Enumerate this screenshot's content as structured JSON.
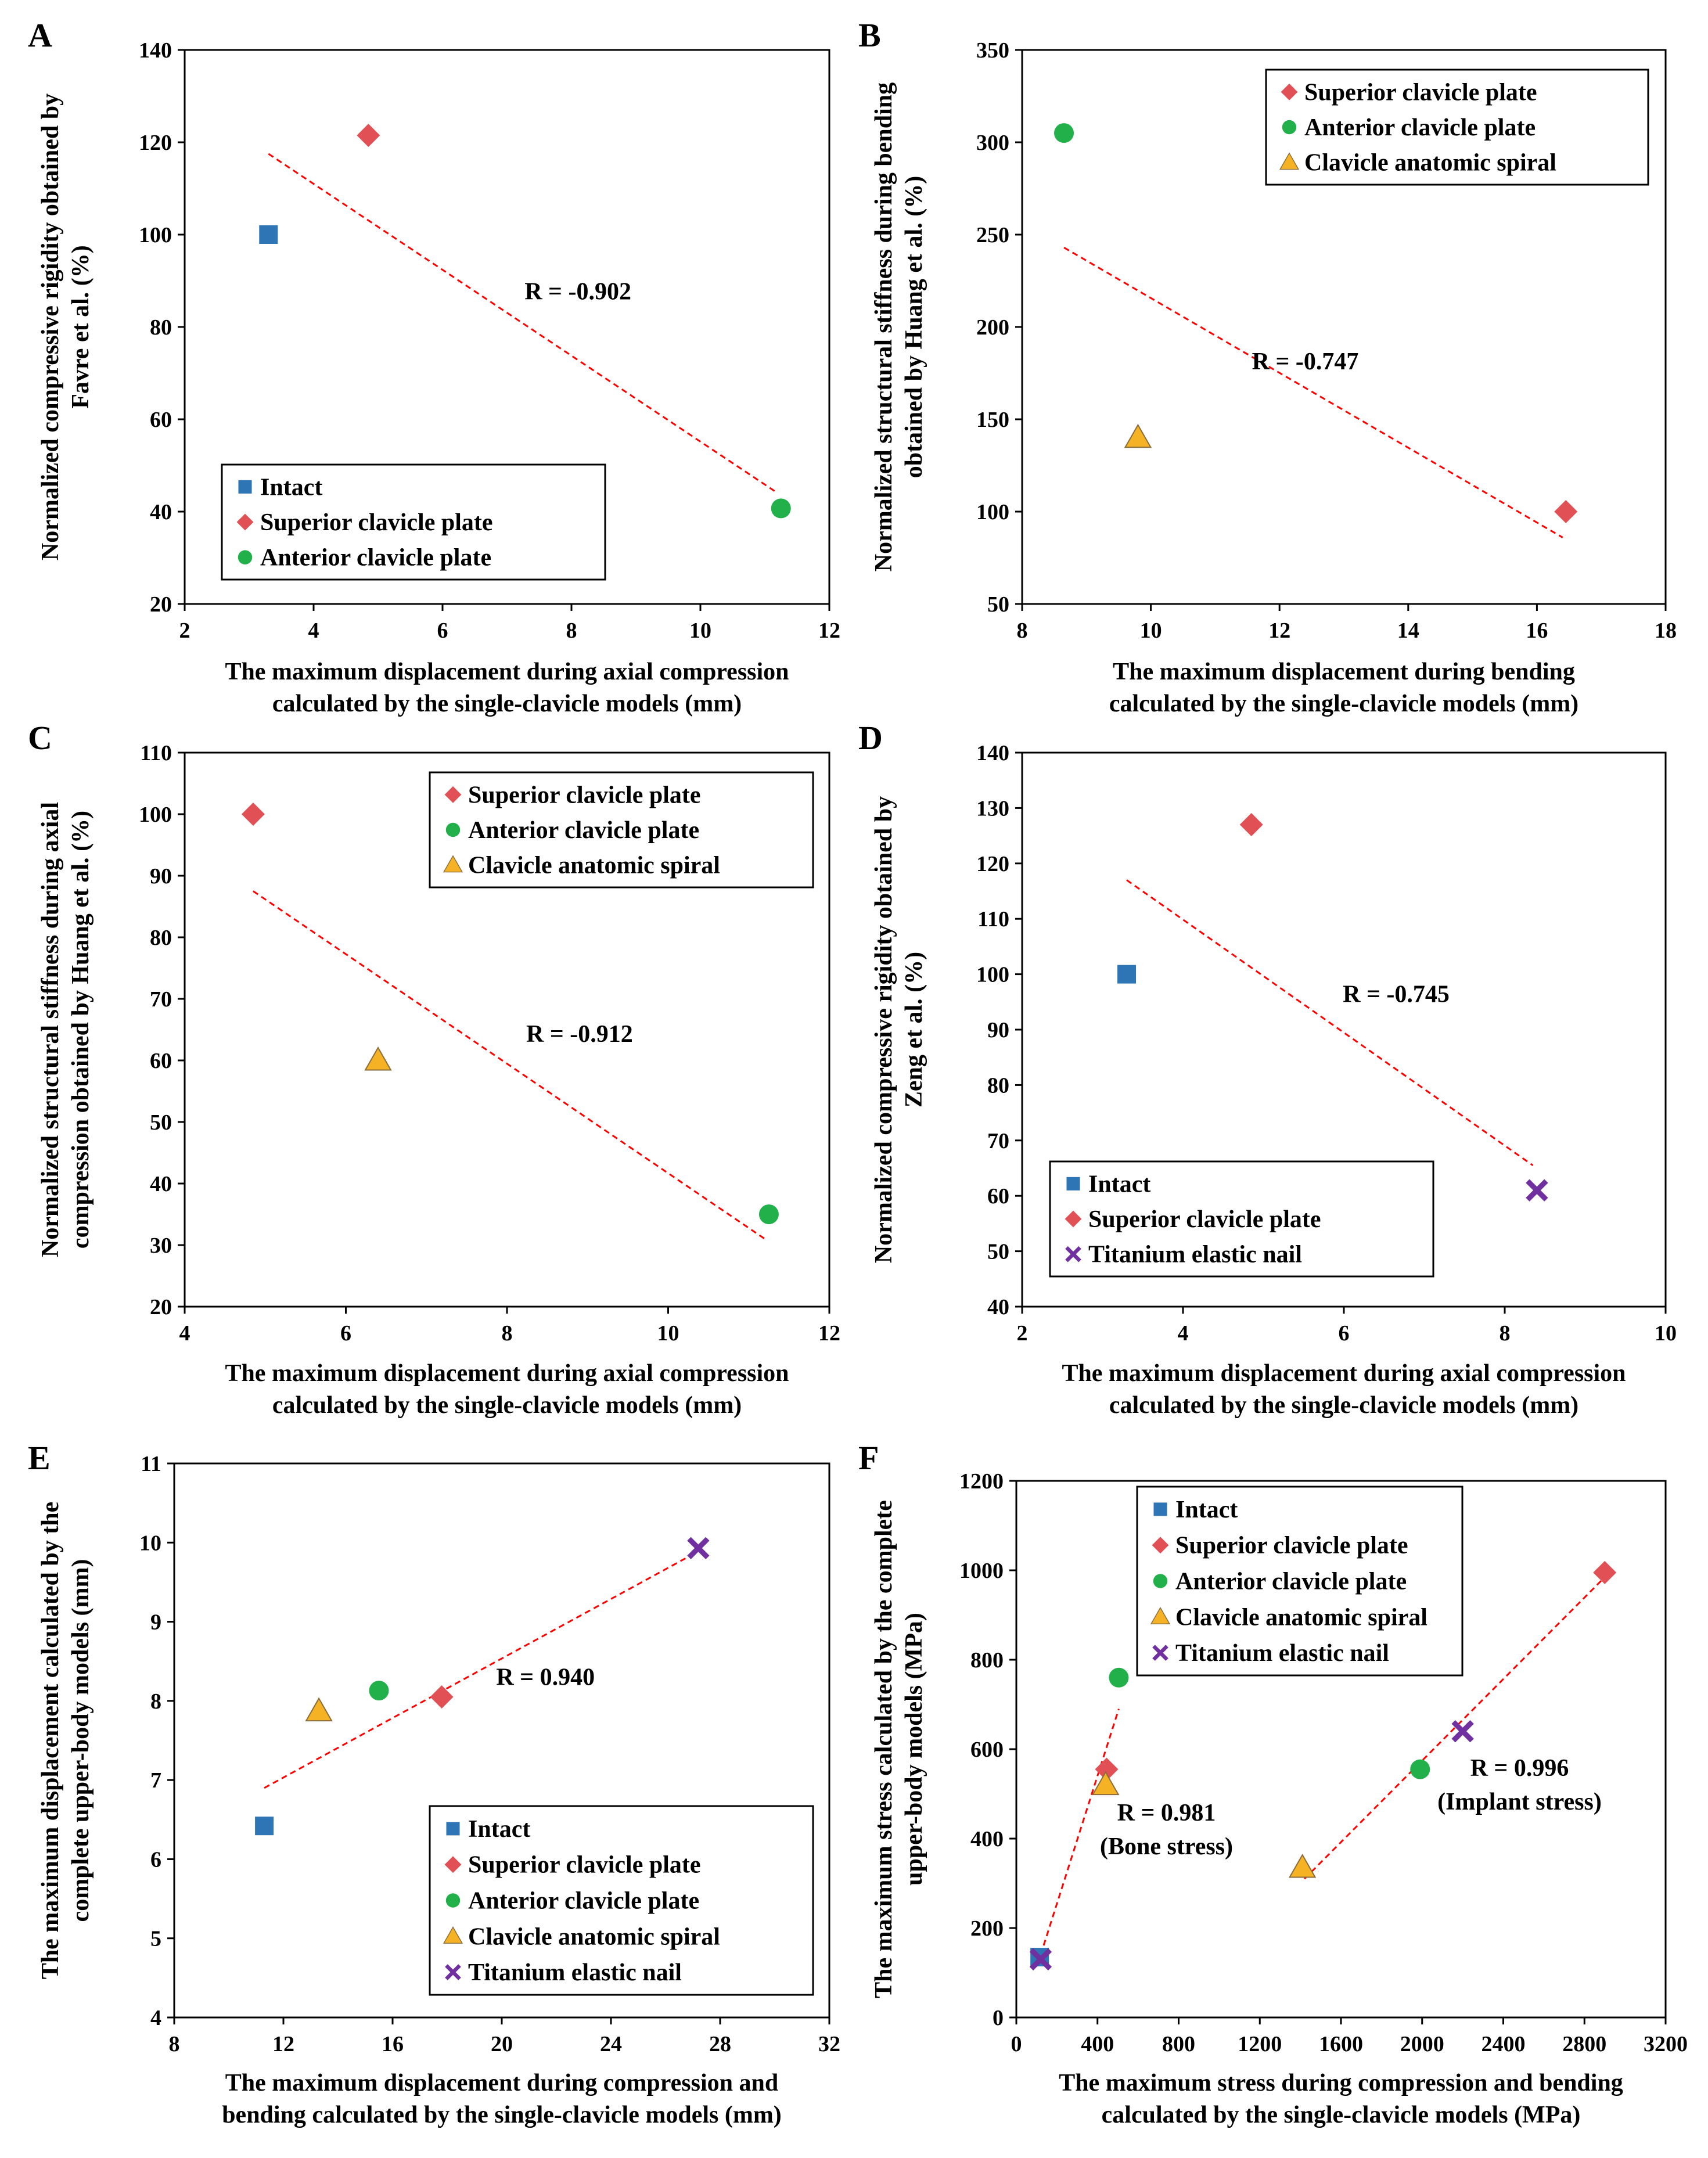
{
  "colors": {
    "intact": "#2E75B6",
    "superior": "#E05055",
    "anterior": "#22B04B",
    "spiral": "#F4B224",
    "nail": "#7030A0",
    "trendline": "#FF0000"
  },
  "chart_data": [
    {
      "type": "scatter",
      "panel": "A",
      "xlabel": [
        "The maximum displacement during axial compression",
        "calculated by the single-clavicle models (mm)"
      ],
      "ylabel": [
        "Normalized compressive rigidity obtained by",
        "Favre et al. (%)"
      ],
      "xlim": [
        2,
        12
      ],
      "ylim": [
        20,
        140
      ],
      "xticks": [
        2,
        4,
        6,
        8,
        10,
        12
      ],
      "yticks": [
        20,
        40,
        60,
        80,
        100,
        120,
        140
      ],
      "series": [
        {
          "name": "Intact",
          "marker": "square",
          "color": "#2E75B6",
          "points": [
            [
              3.3,
              100
            ]
          ]
        },
        {
          "name": "Superior clavicle plate",
          "marker": "diamond",
          "color": "#E05055",
          "points": [
            [
              4.85,
              121.5
            ]
          ]
        },
        {
          "name": "Anterior clavicle plate",
          "marker": "circle",
          "color": "#22B04B",
          "points": [
            [
              11.25,
              40.7
            ]
          ]
        }
      ],
      "trendlines": [
        {
          "from": [
            3.3,
            117.5
          ],
          "to": [
            11.2,
            44
          ]
        }
      ],
      "annotations": [
        {
          "text": "R = -0.902",
          "x": 8.1,
          "y": 86
        }
      ],
      "legend": {
        "position": "bottom-left",
        "entries": [
          "Intact",
          "Superior clavicle plate",
          "Anterior clavicle plate"
        ]
      }
    },
    {
      "type": "scatter",
      "panel": "B",
      "xlabel": [
        "The maximum displacement during bending",
        "calculated by the single-clavicle models (mm)"
      ],
      "ylabel": [
        "Normalized structural stiffness during bending",
        "obtained by Huang et al. (%)"
      ],
      "xlim": [
        8,
        18
      ],
      "ylim": [
        50,
        350
      ],
      "xticks": [
        8,
        10,
        12,
        14,
        16,
        18
      ],
      "yticks": [
        50,
        100,
        150,
        200,
        250,
        300,
        350
      ],
      "series": [
        {
          "name": "Superior clavicle plate",
          "marker": "diamond",
          "color": "#E05055",
          "points": [
            [
              16.45,
              100
            ]
          ]
        },
        {
          "name": "Anterior clavicle plate",
          "marker": "circle",
          "color": "#22B04B",
          "points": [
            [
              8.65,
              305
            ]
          ]
        },
        {
          "name": "Clavicle anatomic spiral",
          "marker": "triangle",
          "color": "#F4B224",
          "points": [
            [
              9.8,
              140
            ]
          ]
        }
      ],
      "trendlines": [
        {
          "from": [
            8.65,
            243
          ],
          "to": [
            16.4,
            86
          ]
        }
      ],
      "annotations": [
        {
          "text": "R = -0.747",
          "x": 12.4,
          "y": 177
        }
      ],
      "legend": {
        "position": "top-right",
        "entries": [
          "Superior clavicle plate",
          "Anterior clavicle plate",
          "Clavicle anatomic spiral"
        ]
      }
    },
    {
      "type": "scatter",
      "panel": "C",
      "xlabel": [
        "The maximum displacement during axial compression",
        "calculated by the single-clavicle models (mm)"
      ],
      "ylabel": [
        "Normalized structural stiffness during axial",
        "compression obtained by Huang et al. (%)"
      ],
      "xlim": [
        4,
        12
      ],
      "ylim": [
        20,
        110
      ],
      "xticks": [
        4,
        6,
        8,
        10,
        12
      ],
      "yticks": [
        20,
        30,
        40,
        50,
        60,
        70,
        80,
        90,
        100,
        110
      ],
      "series": [
        {
          "name": "Superior clavicle plate",
          "marker": "diamond",
          "color": "#E05055",
          "points": [
            [
              4.85,
              100
            ]
          ]
        },
        {
          "name": "Anterior clavicle plate",
          "marker": "circle",
          "color": "#22B04B",
          "points": [
            [
              11.25,
              35
            ]
          ]
        },
        {
          "name": "Clavicle anatomic spiral",
          "marker": "triangle",
          "color": "#F4B224",
          "points": [
            [
              6.4,
              60
            ]
          ]
        }
      ],
      "trendlines": [
        {
          "from": [
            4.85,
            87.5
          ],
          "to": [
            11.2,
            31
          ]
        }
      ],
      "annotations": [
        {
          "text": "R = -0.912",
          "x": 8.9,
          "y": 63
        }
      ],
      "legend": {
        "position": "top-right",
        "entries": [
          "Superior clavicle plate",
          "Anterior clavicle plate",
          "Clavicle anatomic spiral"
        ]
      }
    },
    {
      "type": "scatter",
      "panel": "D",
      "xlabel": [
        "The maximum displacement during axial compression",
        "calculated by the single-clavicle models (mm)"
      ],
      "ylabel": [
        "Normalized compressive rigidity obtained by",
        "Zeng et al. (%)"
      ],
      "xlim": [
        2,
        10
      ],
      "ylim": [
        40,
        140
      ],
      "xticks": [
        2,
        4,
        6,
        8,
        10
      ],
      "yticks": [
        40,
        50,
        60,
        70,
        80,
        90,
        100,
        110,
        120,
        130,
        140
      ],
      "series": [
        {
          "name": "Intact",
          "marker": "square",
          "color": "#2E75B6",
          "points": [
            [
              3.3,
              100
            ]
          ]
        },
        {
          "name": "Superior clavicle plate",
          "marker": "diamond",
          "color": "#E05055",
          "points": [
            [
              4.85,
              127
            ]
          ]
        },
        {
          "name": "Titanium elastic nail",
          "marker": "x",
          "color": "#7030A0",
          "points": [
            [
              8.4,
              61
            ]
          ]
        }
      ],
      "trendlines": [
        {
          "from": [
            3.3,
            117
          ],
          "to": [
            8.35,
            65.5
          ]
        }
      ],
      "annotations": [
        {
          "text": "R = -0.745",
          "x": 6.65,
          "y": 95
        }
      ],
      "legend": {
        "position": "bottom-left",
        "entries": [
          "Intact",
          "Superior clavicle plate",
          "Titanium elastic nail"
        ]
      }
    },
    {
      "type": "scatter",
      "panel": "E",
      "xlabel": [
        "The maximum displacement during compression and",
        "bending calculated by the single-clavicle models (mm)"
      ],
      "ylabel": [
        "The maximum displacement calculated by the",
        "complete upper-body models (mm)"
      ],
      "xlim": [
        8,
        32
      ],
      "ylim": [
        4,
        11
      ],
      "xticks": [
        8,
        12,
        16,
        20,
        24,
        28,
        32
      ],
      "yticks": [
        4,
        5,
        6,
        7,
        8,
        9,
        10,
        11
      ],
      "series": [
        {
          "name": "Intact",
          "marker": "square",
          "color": "#2E75B6",
          "points": [
            [
              11.3,
              6.42
            ]
          ]
        },
        {
          "name": "Superior clavicle plate",
          "marker": "diamond",
          "color": "#E05055",
          "points": [
            [
              17.8,
              8.05
            ]
          ]
        },
        {
          "name": "Anterior clavicle plate",
          "marker": "circle",
          "color": "#22B04B",
          "points": [
            [
              15.5,
              8.13
            ]
          ]
        },
        {
          "name": "Clavicle anatomic spiral",
          "marker": "triangle",
          "color": "#F4B224",
          "points": [
            [
              13.3,
              7.87
            ]
          ]
        },
        {
          "name": "Titanium elastic nail",
          "marker": "x",
          "color": "#7030A0",
          "points": [
            [
              27.2,
              9.93
            ]
          ]
        }
      ],
      "trendlines": [
        {
          "from": [
            11.3,
            6.9
          ],
          "to": [
            27.1,
            9.87
          ]
        }
      ],
      "annotations": [
        {
          "text": "R = 0.940",
          "x": 21.6,
          "y": 8.2
        }
      ],
      "legend": {
        "position": "bottom-right",
        "entries": [
          "Intact",
          "Superior clavicle plate",
          "Anterior clavicle plate",
          "Clavicle anatomic spiral",
          "Titanium elastic nail"
        ]
      }
    },
    {
      "type": "scatter",
      "panel": "F",
      "xlabel": [
        "The maximum stress during compression and bending",
        "calculated by the single-clavicle models (MPa)"
      ],
      "ylabel": [
        "The maximum stress calculated by the complete",
        "upper-body models (MPa)"
      ],
      "xlim": [
        0,
        3200
      ],
      "ylim": [
        0,
        1200
      ],
      "xticks": [
        0,
        400,
        800,
        1200,
        1600,
        2000,
        2400,
        2800,
        3200
      ],
      "yticks": [
        0,
        200,
        400,
        600,
        800,
        1000,
        1200
      ],
      "series": [
        {
          "name": "Intact",
          "marker": "square",
          "color": "#2E75B6",
          "points": [
            [
              115,
              135
            ]
          ]
        },
        {
          "name": "Superior clavicle plate",
          "marker": "diamond",
          "color": "#E05055",
          "points": [
            [
              445,
              555
            ],
            [
              2900,
              995
            ]
          ]
        },
        {
          "name": "Anterior clavicle plate",
          "marker": "circle",
          "color": "#22B04B",
          "points": [
            [
              505,
              760
            ],
            [
              1990,
              555
            ]
          ]
        },
        {
          "name": "Clavicle anatomic spiral",
          "marker": "triangle",
          "color": "#F4B224",
          "points": [
            [
              440,
              520
            ],
            [
              1410,
              335
            ]
          ]
        },
        {
          "name": "Titanium elastic nail",
          "marker": "x",
          "color": "#7030A0",
          "points": [
            [
              120,
              130
            ],
            [
              2200,
              640
            ]
          ]
        }
      ],
      "trendlines": [
        {
          "from": [
            120,
            140
          ],
          "to": [
            505,
            690
          ]
        },
        {
          "from": [
            1420,
            310
          ],
          "to": [
            2890,
            980
          ]
        }
      ],
      "annotations": [
        {
          "text": "R = 0.981",
          "x": 740,
          "y": 440
        },
        {
          "text": "(Bone stress)",
          "x": 740,
          "y": 365
        },
        {
          "text": "R = 0.996",
          "x": 2480,
          "y": 540
        },
        {
          "text": "(Implant stress)",
          "x": 2480,
          "y": 465
        }
      ],
      "legend": {
        "position": "top-left",
        "entries": [
          "Intact",
          "Superior clavicle plate",
          "Anterior clavicle plate",
          "Clavicle anatomic spiral",
          "Titanium elastic nail"
        ]
      }
    }
  ]
}
